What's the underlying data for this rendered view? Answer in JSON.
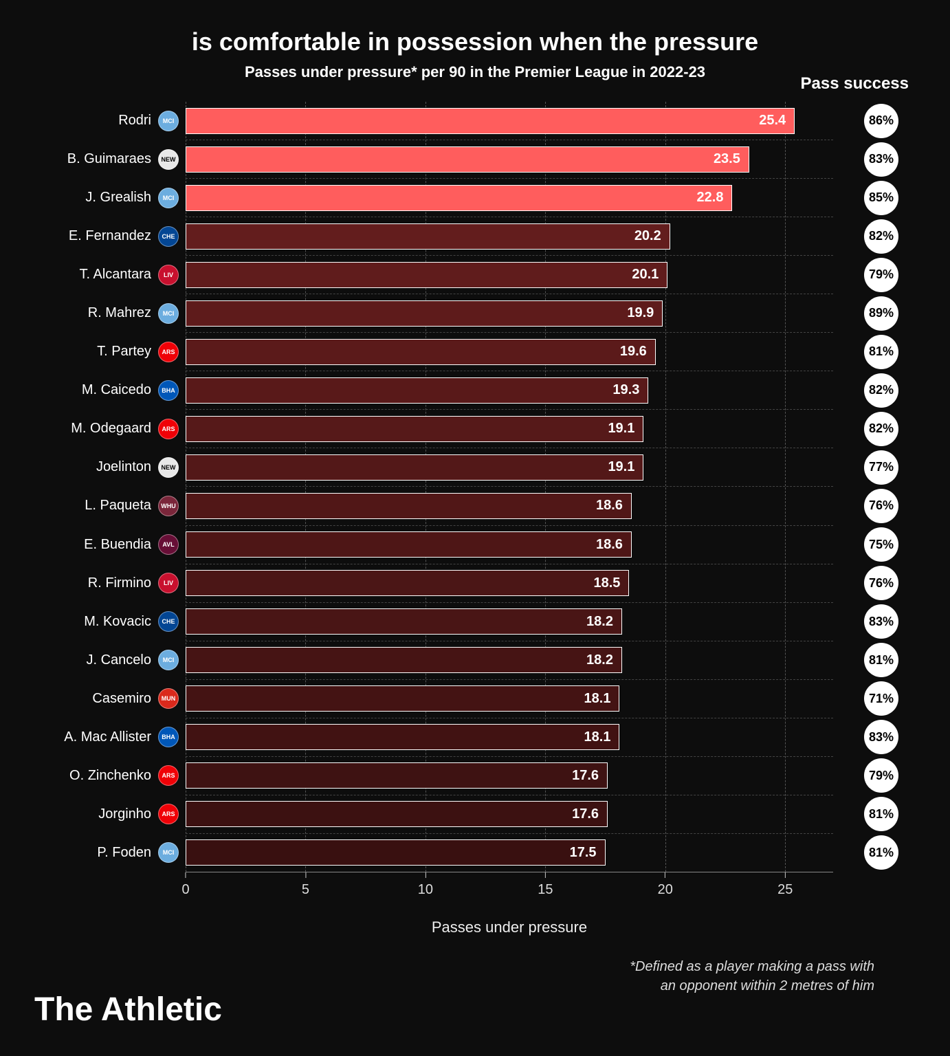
{
  "title": "is comfortable in possession when the pressure",
  "subtitle": "Passes under pressure* per 90 in the Premier League in 2022-23",
  "pass_success_header": "Pass success",
  "x_axis_label": "Passes under pressure",
  "footnote_line1": "*Defined as a player making a pass with",
  "footnote_line2": "an opponent within 2 metres of him",
  "brand": "The Athletic",
  "chart": {
    "type": "bar-horizontal",
    "x_min": 0,
    "x_max": 27,
    "x_ticks": [
      0,
      5,
      10,
      15,
      20,
      25
    ],
    "grid_color": "#555555",
    "background_color": "#0d0d0d",
    "bar_border_color": "#ffffff",
    "highlight_color": "#ff5d5d",
    "normal_bar_color_start": "#6b1f1f",
    "circle_bg": "#ffffff",
    "circle_text": "#000000",
    "label_fontsize": 20,
    "value_fontsize": 20,
    "title_fontsize": 36,
    "subtitle_fontsize": 22
  },
  "team_colors": {
    "mancity": "#6caddf",
    "newcastle": "#e8e8e8",
    "chelsea": "#034694",
    "liverpool": "#c8102e",
    "arsenal": "#ef0107",
    "brighton": "#0057b8",
    "westham": "#7a263a",
    "astonvilla": "#670e36",
    "manutd": "#da291c"
  },
  "players": [
    {
      "name": "Rodri",
      "team": "mancity",
      "abbr": "MCI",
      "value": 25.4,
      "success": "86%",
      "highlight": true
    },
    {
      "name": "B. Guimaraes",
      "team": "newcastle",
      "abbr": "NEW",
      "value": 23.5,
      "success": "83%",
      "highlight": true
    },
    {
      "name": "J. Grealish",
      "team": "mancity",
      "abbr": "MCI",
      "value": 22.8,
      "success": "85%",
      "highlight": true
    },
    {
      "name": "E. Fernandez",
      "team": "chelsea",
      "abbr": "CHE",
      "value": 20.2,
      "success": "82%",
      "highlight": false
    },
    {
      "name": "T. Alcantara",
      "team": "liverpool",
      "abbr": "LIV",
      "value": 20.1,
      "success": "79%",
      "highlight": false
    },
    {
      "name": "R. Mahrez",
      "team": "mancity",
      "abbr": "MCI",
      "value": 19.9,
      "success": "89%",
      "highlight": false
    },
    {
      "name": "T. Partey",
      "team": "arsenal",
      "abbr": "ARS",
      "value": 19.6,
      "success": "81%",
      "highlight": false
    },
    {
      "name": "M. Caicedo",
      "team": "brighton",
      "abbr": "BHA",
      "value": 19.3,
      "success": "82%",
      "highlight": false
    },
    {
      "name": "M. Odegaard",
      "team": "arsenal",
      "abbr": "ARS",
      "value": 19.1,
      "success": "82%",
      "highlight": false
    },
    {
      "name": "Joelinton",
      "team": "newcastle",
      "abbr": "NEW",
      "value": 19.1,
      "success": "77%",
      "highlight": false
    },
    {
      "name": "L. Paqueta",
      "team": "westham",
      "abbr": "WHU",
      "value": 18.6,
      "success": "76%",
      "highlight": false
    },
    {
      "name": "E. Buendia",
      "team": "astonvilla",
      "abbr": "AVL",
      "value": 18.6,
      "success": "75%",
      "highlight": false
    },
    {
      "name": "R. Firmino",
      "team": "liverpool",
      "abbr": "LIV",
      "value": 18.5,
      "success": "76%",
      "highlight": false
    },
    {
      "name": "M. Kovacic",
      "team": "chelsea",
      "abbr": "CHE",
      "value": 18.2,
      "success": "83%",
      "highlight": false
    },
    {
      "name": "J. Cancelo",
      "team": "mancity",
      "abbr": "MCI",
      "value": 18.2,
      "success": "81%",
      "highlight": false
    },
    {
      "name": "Casemiro",
      "team": "manutd",
      "abbr": "MUN",
      "value": 18.1,
      "success": "71%",
      "highlight": false
    },
    {
      "name": "A. Mac Allister",
      "team": "brighton",
      "abbr": "BHA",
      "value": 18.1,
      "success": "83%",
      "highlight": false
    },
    {
      "name": "O. Zinchenko",
      "team": "arsenal",
      "abbr": "ARS",
      "value": 17.6,
      "success": "79%",
      "highlight": false
    },
    {
      "name": "Jorginho",
      "team": "arsenal",
      "abbr": "ARS",
      "value": 17.6,
      "success": "81%",
      "highlight": false
    },
    {
      "name": "P. Foden",
      "team": "mancity",
      "abbr": "MCI",
      "value": 17.5,
      "success": "81%",
      "highlight": false
    }
  ]
}
